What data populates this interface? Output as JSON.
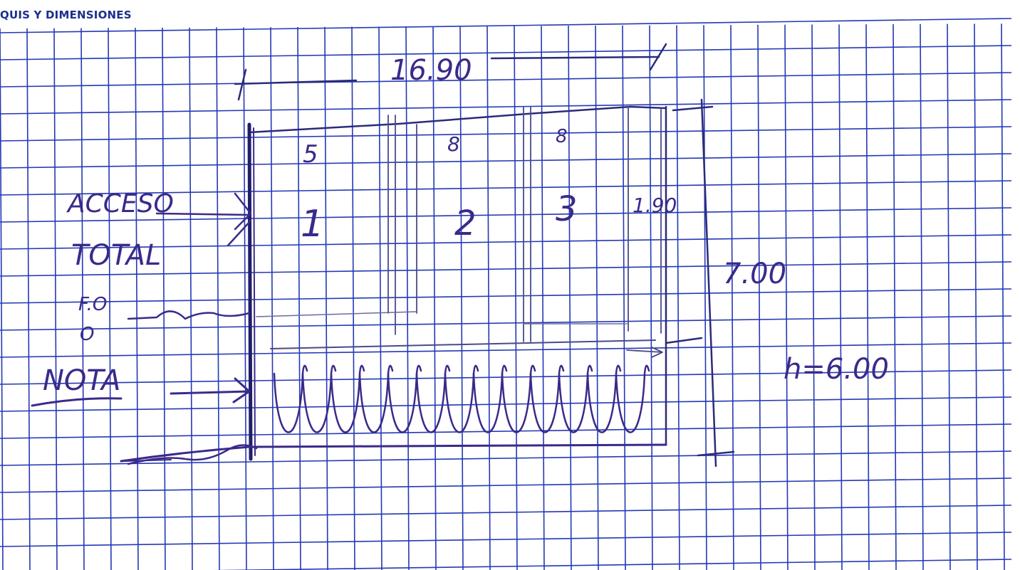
{
  "header": {
    "title": "QUIS Y DIMENSIONES"
  },
  "sketch": {
    "ink_color": "#3a2a8a",
    "grid_color": "#2438b5",
    "dimensions": {
      "width_top": "16.90",
      "height_right": "7.00",
      "height_label": "h=6.00",
      "inner_dim": "1.90"
    },
    "bay_widths": [
      "5",
      "8",
      "8"
    ],
    "bay_numbers": [
      "1",
      "2",
      "3"
    ],
    "left_notes": {
      "access": "ACCESO",
      "total": "TOTAL",
      "small_1": "F.O",
      "small_2": "O",
      "nota": "NOTA"
    }
  }
}
